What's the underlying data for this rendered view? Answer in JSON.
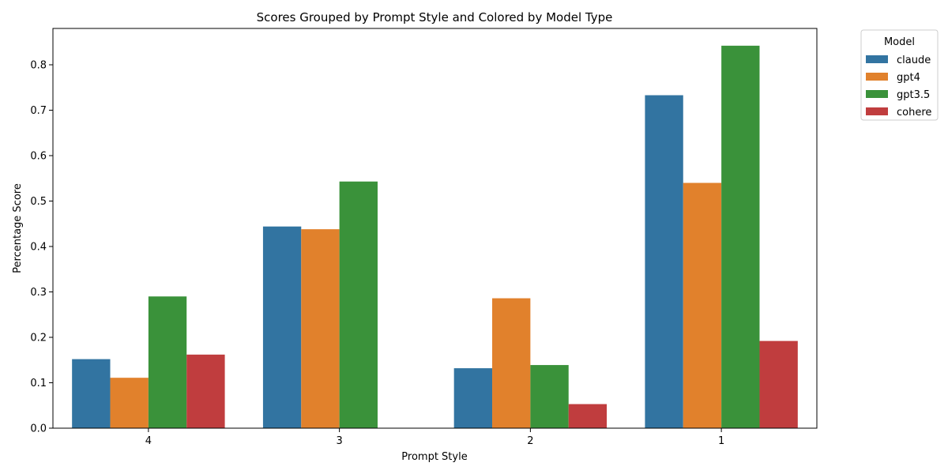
{
  "chart_data": {
    "type": "bar",
    "title": "Scores Grouped by Prompt Style and Colored by Model Type",
    "xlabel": "Prompt Style",
    "ylabel": "Percentage Score",
    "categories": [
      "4",
      "3",
      "2",
      "1"
    ],
    "ylim": [
      0,
      0.88
    ],
    "yticks": [
      "0.0",
      "0.1",
      "0.2",
      "0.3",
      "0.4",
      "0.5",
      "0.6",
      "0.7",
      "0.8"
    ],
    "grid": false,
    "legend": {
      "title": "Model",
      "placement": "upper right, outside plot"
    },
    "series": [
      {
        "name": "claude",
        "color": "#3274a1",
        "values": [
          0.152,
          0.444,
          0.132,
          0.733
        ]
      },
      {
        "name": "gpt4",
        "color": "#e1812c",
        "values": [
          0.111,
          0.438,
          0.286,
          0.54
        ]
      },
      {
        "name": "gpt3.5",
        "color": "#3a923a",
        "values": [
          0.29,
          0.543,
          0.139,
          0.842
        ]
      },
      {
        "name": "cohere",
        "color": "#c03d3e",
        "values": [
          0.162,
          null,
          0.053,
          0.192
        ]
      }
    ]
  }
}
